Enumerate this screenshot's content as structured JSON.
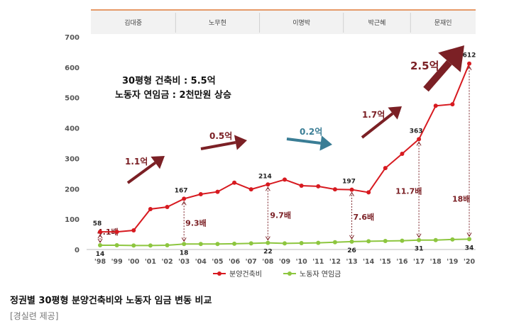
{
  "chart_data": {
    "type": "line",
    "x": [
      "'98",
      "'99",
      "'00",
      "'01",
      "'02",
      "'03",
      "'04",
      "'05",
      "'06",
      "'07",
      "'08",
      "'09",
      "'10",
      "'11",
      "'12",
      "'13",
      "'14",
      "'15",
      "'16",
      "'17",
      "'18",
      "'19",
      "'20"
    ],
    "series": [
      {
        "name": "분양건축비",
        "color": "#d71a20",
        "values": [
          58,
          58,
          63,
          133,
          140,
          167,
          182,
          190,
          220,
          198,
          214,
          230,
          210,
          208,
          198,
          197,
          188,
          268,
          315,
          363,
          473,
          478,
          612
        ]
      },
      {
        "name": "노동자 연임금",
        "color": "#8dc63f",
        "values": [
          14,
          14,
          13,
          13,
          14,
          18,
          18,
          18,
          19,
          20,
          22,
          20,
          21,
          22,
          24,
          26,
          27,
          28,
          29,
          31,
          31,
          33,
          34
        ]
      }
    ],
    "ylim": [
      0,
      700
    ],
    "yticks": [
      0,
      100,
      200,
      300,
      400,
      500,
      600,
      700
    ],
    "grid": false,
    "legend": "bottom",
    "era_bands": [
      "김대중",
      "노무현",
      "이명박",
      "박근혜",
      "문재인"
    ],
    "era_bounds": [
      [
        0,
        4
      ],
      [
        5,
        9
      ],
      [
        10,
        14
      ],
      [
        15,
        18
      ],
      [
        19,
        22
      ]
    ],
    "point_labels_cost": [
      {
        "i": 0,
        "text": "58"
      },
      {
        "i": 5,
        "text": "167"
      },
      {
        "i": 10,
        "text": "214"
      },
      {
        "i": 15,
        "text": "197"
      },
      {
        "i": 19,
        "text": "363"
      },
      {
        "i": 22,
        "text": "612"
      }
    ],
    "point_labels_wage": [
      {
        "i": 0,
        "text": "14"
      },
      {
        "i": 5,
        "text": "18"
      },
      {
        "i": 10,
        "text": "22"
      },
      {
        "i": 15,
        "text": "26"
      },
      {
        "i": 19,
        "text": "31"
      },
      {
        "i": 22,
        "text": "34"
      }
    ],
    "ratio_labels": [
      {
        "i": 0,
        "text": "4.1배"
      },
      {
        "i": 5,
        "text": "9.3배"
      },
      {
        "i": 10,
        "text": "9.7배"
      },
      {
        "i": 15,
        "text": "7.6배"
      },
      {
        "i": 19,
        "text": "11.7배"
      },
      {
        "i": 22,
        "text": "18배"
      }
    ],
    "trend_arrows": [
      {
        "text": "1.1억",
        "color": "#7b2025"
      },
      {
        "text": "0.5억",
        "color": "#7b2025"
      },
      {
        "text": "0.2억",
        "color": "#3a7d95"
      },
      {
        "text": "1.7억",
        "color": "#7b2025"
      },
      {
        "text": "2.5억",
        "color": "#7b2025"
      }
    ],
    "annotation_lines": [
      "30평형 건축비 : 5.5억",
      "노동자 연임금 : 2천만원 상승"
    ]
  },
  "caption": "정권별 30평형 분양건축비와 노동자 임금 변동 비교",
  "source": "[경실련 제공]"
}
